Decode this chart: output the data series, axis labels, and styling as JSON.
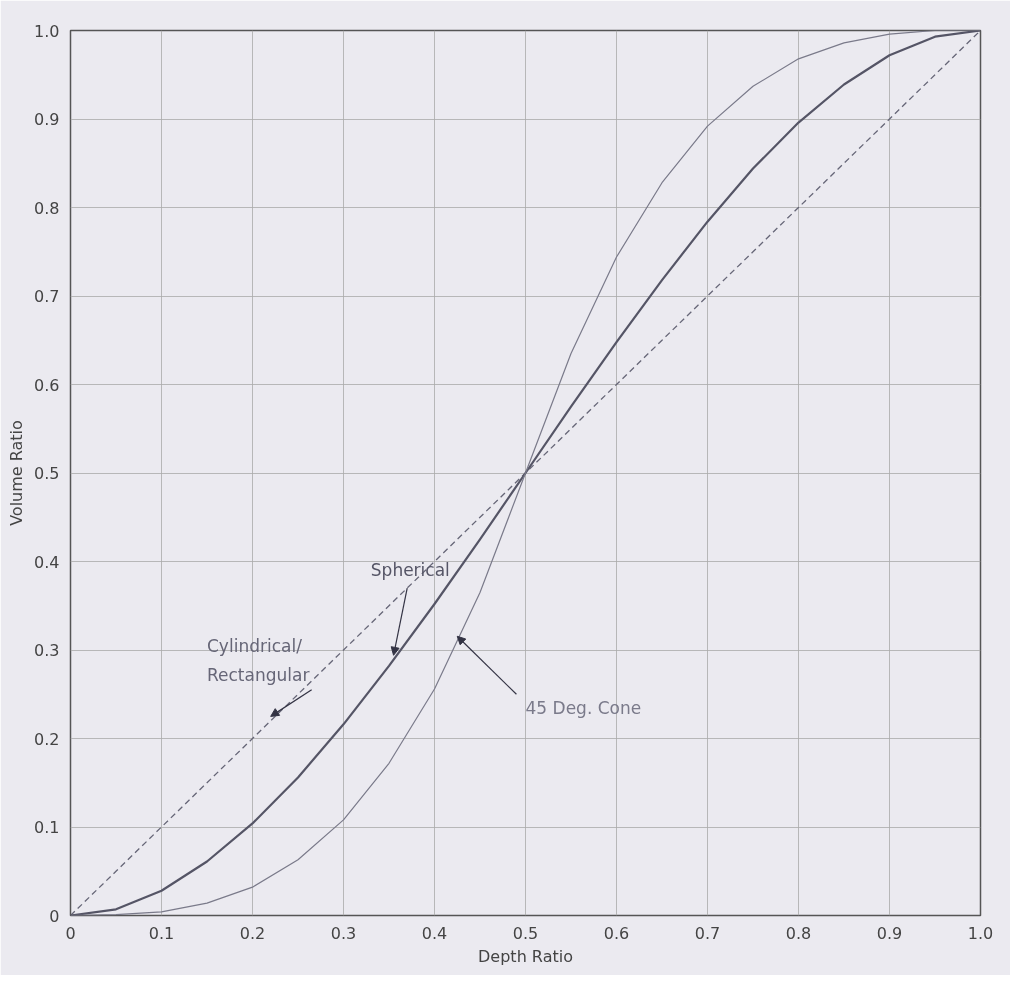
{
  "chart_data": {
    "type": "line",
    "xlabel": "Depth Ratio",
    "ylabel": "Volume Ratio",
    "x": [
      0,
      0.05,
      0.1,
      0.15,
      0.2,
      0.25,
      0.3,
      0.35,
      0.4,
      0.45,
      0.5,
      0.55,
      0.6,
      0.65,
      0.7,
      0.75,
      0.8,
      0.85,
      0.9,
      0.95,
      1
    ],
    "series": [
      {
        "name": "Cylindrical/ Rectangular",
        "color": "#666677",
        "line_style": "dashed",
        "values": [
          0,
          0.05,
          0.1,
          0.15,
          0.2,
          0.25,
          0.3,
          0.35,
          0.4,
          0.45,
          0.5,
          0.55,
          0.6,
          0.65,
          0.7,
          0.75,
          0.8,
          0.85,
          0.9,
          0.95,
          1
        ]
      },
      {
        "name": "Spherical",
        "color": "#555566",
        "line_style": "solid",
        "values": [
          0,
          0.007,
          0.028,
          0.061,
          0.104,
          0.156,
          0.216,
          0.282,
          0.352,
          0.425,
          0.5,
          0.575,
          0.648,
          0.718,
          0.784,
          0.844,
          0.896,
          0.939,
          0.972,
          0.993,
          1
        ]
      },
      {
        "name": "45 Deg. Cone",
        "color": "#7a7a8a",
        "line_style": "solid",
        "values": [
          0,
          0.001,
          0.004,
          0.014,
          0.032,
          0.063,
          0.108,
          0.172,
          0.256,
          0.365,
          0.5,
          0.635,
          0.744,
          0.828,
          0.892,
          0.937,
          0.968,
          0.986,
          0.996,
          1,
          1
        ]
      }
    ],
    "xlim": [
      0,
      1
    ],
    "ylim": [
      0,
      1
    ],
    "xticks": [
      0,
      0.1,
      0.2,
      0.3,
      0.4,
      0.5,
      0.6,
      0.7,
      0.8,
      0.9,
      {
        "value": 1,
        "label": "1.0"
      }
    ],
    "yticks": [
      0,
      0.1,
      0.2,
      0.3,
      0.4,
      0.5,
      0.6,
      0.7,
      0.8,
      0.9,
      {
        "value": 1,
        "label": "1.0"
      }
    ],
    "grid": true,
    "legend": false,
    "marker": "none"
  }
}
